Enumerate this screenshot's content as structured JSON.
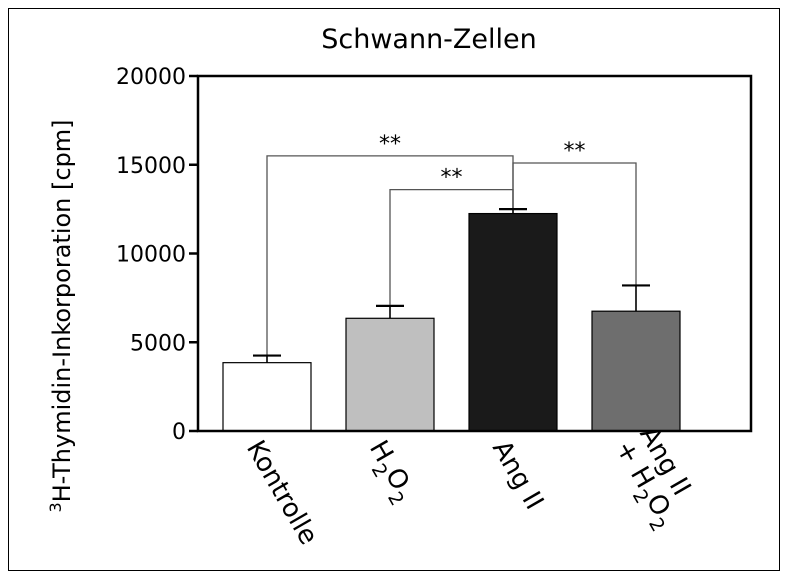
{
  "chart_data": {
    "type": "bar",
    "title": "Schwann-Zellen",
    "ylabel_sup": "3",
    "ylabel": "H-Thymidin-Inkorporation [cpm]",
    "xlabel": "",
    "ylim": [
      0,
      20000
    ],
    "yticks": [
      "0",
      "5000",
      "10000",
      "15000",
      "20000"
    ],
    "categories": [
      {
        "lines": [
          [
            {
              "t": "Kontrolle"
            }
          ]
        ]
      },
      {
        "lines": [
          [
            {
              "t": "H"
            },
            {
              "t": "2",
              "sub": true
            },
            {
              "t": "O"
            },
            {
              "t": "2",
              "sub": true
            }
          ]
        ]
      },
      {
        "lines": [
          [
            {
              "t": "Ang II"
            }
          ]
        ]
      },
      {
        "lines": [
          [
            {
              "t": "Ang II"
            }
          ],
          [
            {
              "t": "+ H"
            },
            {
              "t": "2",
              "sub": true
            },
            {
              "t": "O"
            },
            {
              "t": "2",
              "sub": true
            }
          ]
        ]
      }
    ],
    "values": [
      3850,
      6350,
      12250,
      6750
    ],
    "errors": [
      400,
      700,
      250,
      1450
    ],
    "colors": [
      "#ffffff",
      "#bfbfbf",
      "#1a1a1a",
      "#6e6e6e"
    ],
    "significance": [
      {
        "from": 0,
        "to": 2,
        "label": "**",
        "y": 15500
      },
      {
        "from": 1,
        "to": 2,
        "label": "**",
        "y": 13600
      },
      {
        "from": 2,
        "to": 3,
        "label": "**",
        "y": 15100
      }
    ],
    "grid": false,
    "legend": "none"
  }
}
